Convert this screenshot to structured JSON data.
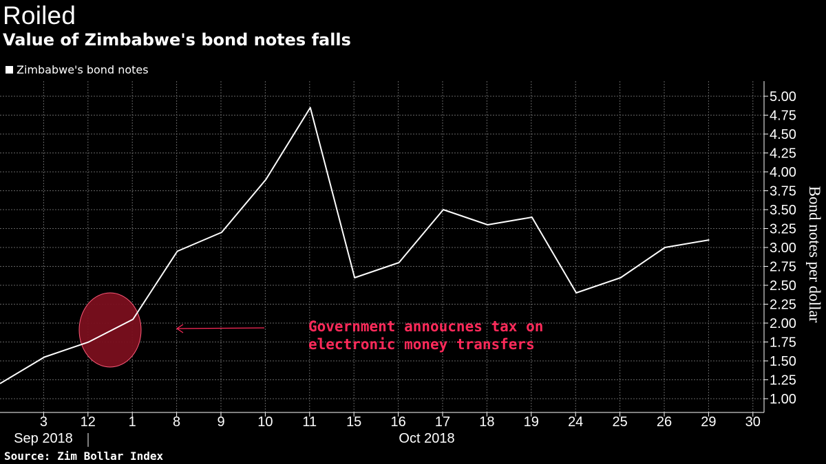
{
  "header": {
    "title": "Roiled",
    "subtitle": "Value of Zimbabwe's bond notes falls"
  },
  "legend": {
    "label": "Zimbabwe's bond notes"
  },
  "source": "Source: Zim Bollar Index",
  "annotation": {
    "text": "Government annoucnes tax on\nelectronic money transfers",
    "color": "#ff2a5a"
  },
  "colors": {
    "background": "#000000",
    "line": "#ffffff",
    "grid": "#666666",
    "highlight": "#7a0f1e"
  },
  "chart_data": {
    "type": "line",
    "title": "Roiled",
    "subtitle": "Value of Zimbabwe's bond notes falls",
    "ylabel": "Bond notes per dollar",
    "ylim": [
      0.8,
      5.2
    ],
    "yticks": [
      "1.00",
      "1.25",
      "1.50",
      "1.75",
      "2.00",
      "2.25",
      "2.50",
      "2.75",
      "3.00",
      "3.25",
      "3.50",
      "3.75",
      "4.00",
      "4.25",
      "4.50",
      "4.75",
      "5.00"
    ],
    "x_ticks": [
      "3",
      "12",
      "1",
      "8",
      "9",
      "10",
      "11",
      "15",
      "16",
      "17",
      "18",
      "19",
      "24",
      "25",
      "26",
      "29",
      "30"
    ],
    "x_groups": [
      "Sep 2018",
      "Oct 2018"
    ],
    "grid": true,
    "legend_position": "top-left",
    "series": [
      {
        "name": "Zimbabwe's bond notes",
        "x": [
          "2018-08-31",
          "2018-09-03",
          "2018-09-12",
          "2018-10-01",
          "2018-10-08",
          "2018-10-09",
          "2018-10-10",
          "2018-10-11",
          "2018-10-15",
          "2018-10-16",
          "2018-10-17",
          "2018-10-18",
          "2018-10-19",
          "2018-10-24",
          "2018-10-25",
          "2018-10-26",
          "2018-10-29"
        ],
        "values": [
          1.2,
          1.55,
          1.75,
          2.05,
          2.95,
          3.2,
          3.9,
          4.85,
          2.6,
          2.8,
          3.5,
          3.3,
          3.4,
          2.4,
          2.6,
          3.0,
          3.1
        ]
      }
    ]
  }
}
